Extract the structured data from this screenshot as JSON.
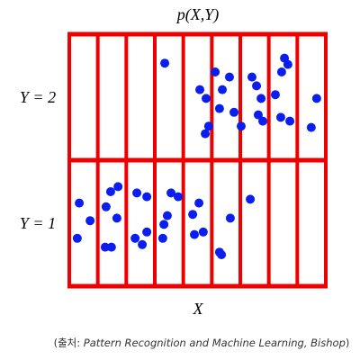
{
  "chart_data": {
    "type": "scatter",
    "title": "p(X,Y)",
    "x_label": "X",
    "row_labels": [
      "Y = 1",
      "Y = 2"
    ],
    "caption": {
      "prefix": "(출처: ",
      "source": "Pattern Recognition and Machine Learning, Bishop",
      "suffix": ")"
    },
    "xlim": [
      0,
      9
    ],
    "ylim": [
      0,
      2
    ],
    "xticks": [
      0,
      1,
      2,
      3,
      4,
      5,
      6,
      7,
      8,
      9
    ],
    "yticks": [
      0,
      1,
      2
    ],
    "grid": true,
    "grid_color": "#ee0000",
    "series": [
      {
        "color": "#0a1ef0",
        "x": [
          3.35,
          4.58,
          4.8,
          4.89,
          4.77,
          5.12,
          5.37,
          5.27,
          5.78,
          5.62,
          6.03,
          6.41,
          6.57,
          6.73,
          6.63,
          6.79,
          7.23,
          7.55,
          7.67,
          7.45,
          7.42,
          7.74,
          8.49,
          8.68,
          0.35,
          0.28,
          0.73,
          1.29,
          1.45,
          1.71,
          1.26,
          1.48,
          1.67,
          2.37,
          2.31,
          2.56,
          2.72,
          2.72,
          3.57,
          3.44,
          3.32,
          3.28,
          3.82,
          4.55,
          4.33,
          4.39,
          4.7,
          5.34,
          5.27,
          5.65,
          6.35
        ],
        "values": [
          1.77,
          1.56,
          1.49,
          1.27,
          1.21,
          1.7,
          1.56,
          1.41,
          1.38,
          1.66,
          1.27,
          1.66,
          1.59,
          1.49,
          1.36,
          1.31,
          1.52,
          1.81,
          1.76,
          1.7,
          1.34,
          1.31,
          1.26,
          1.49,
          0.66,
          0.38,
          0.52,
          0.63,
          0.75,
          0.79,
          0.31,
          0.31,
          0.54,
          0.74,
          0.38,
          0.33,
          0.71,
          0.43,
          0.74,
          0.56,
          0.49,
          0.38,
          0.71,
          0.66,
          0.57,
          0.41,
          0.43,
          0.25,
          0.27,
          0.54,
          0.69
        ]
      }
    ]
  }
}
